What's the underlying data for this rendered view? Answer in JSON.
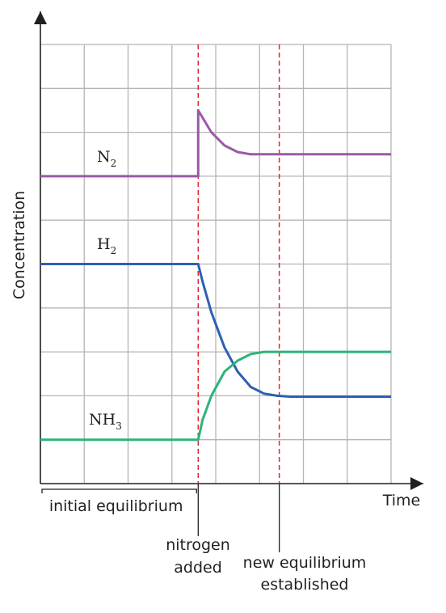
{
  "chart_data": {
    "type": "line",
    "title": "",
    "xlabel": "Time",
    "ylabel": "Concentration",
    "grid": true,
    "xlim": [
      0,
      8
    ],
    "ylim": [
      0,
      10
    ],
    "series": [
      {
        "name": "N",
        "subscript": "2",
        "color": "#9b59a6",
        "x": [
          0,
          3.6,
          3.6,
          3.9,
          4.2,
          4.5,
          4.8,
          5.1,
          5.4,
          8
        ],
        "y": [
          7,
          7,
          8.5,
          8.0,
          7.7,
          7.55,
          7.5,
          7.5,
          7.5,
          7.5
        ]
      },
      {
        "name": "H",
        "subscript": "2",
        "color": "#2e5fb5",
        "x": [
          0,
          3.6,
          3.7,
          3.9,
          4.2,
          4.5,
          4.8,
          5.1,
          5.4,
          5.7,
          6.0,
          8
        ],
        "y": [
          5,
          5,
          4.6,
          3.9,
          3.1,
          2.55,
          2.2,
          2.05,
          2.0,
          1.98,
          1.98,
          1.98
        ]
      },
      {
        "name": "NH",
        "subscript": "3",
        "color": "#2db37a",
        "x": [
          0,
          3.6,
          3.7,
          3.9,
          4.2,
          4.5,
          4.8,
          5.1,
          5.4,
          8
        ],
        "y": [
          1,
          1,
          1.45,
          2.0,
          2.55,
          2.8,
          2.95,
          3.0,
          3.0,
          3.0
        ]
      }
    ],
    "events": [
      {
        "x": 3.6,
        "label": [
          "nitrogen",
          "added"
        ]
      },
      {
        "x": 5.45,
        "label": [
          "new equilibrium",
          "established"
        ]
      }
    ],
    "range_annotation": {
      "x": [
        0,
        3.6
      ],
      "label": "initial equilibrium"
    }
  }
}
